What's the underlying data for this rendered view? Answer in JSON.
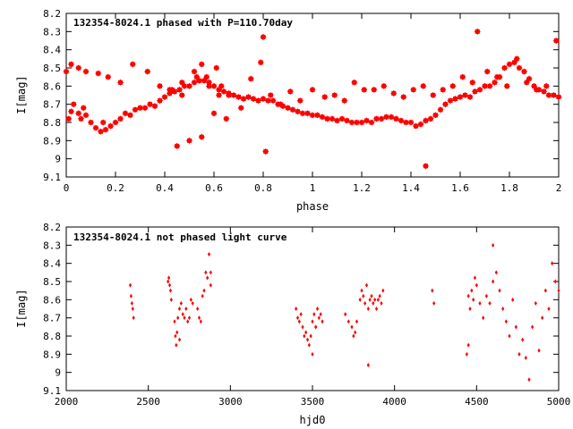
{
  "chart_data": [
    {
      "type": "scatter",
      "title": "132354-8024.1 phased with P=110.70day",
      "xlabel": "phase",
      "ylabel": "I[mag]",
      "xlim": [
        0,
        2
      ],
      "ylim": [
        8.2,
        9.1
      ],
      "y_inverted": true,
      "xticks": [
        0,
        0.2,
        0.4,
        0.6,
        0.8,
        1,
        1.2,
        1.4,
        1.6,
        1.8,
        2
      ],
      "xtick_labels": [
        "0",
        "0.2",
        "0.4",
        "0.6",
        "0.8",
        "1",
        "1.2",
        "1.4",
        "1.6",
        "1.8",
        "2"
      ],
      "yticks": [
        8.2,
        8.3,
        8.4,
        8.5,
        8.6,
        8.7,
        8.8,
        8.9,
        9.0,
        9.1
      ],
      "ytick_labels": [
        "8.2",
        "8.3",
        "8.4",
        "8.5",
        "8.6",
        "8.7",
        "8.8",
        "8.9",
        "9",
        "9.1"
      ],
      "marker_color": "#ff0000",
      "grid": false,
      "series": [
        {
          "x": [
            0.0,
            0.01,
            0.02,
            0.03,
            0.05,
            0.06,
            0.07,
            0.08,
            0.1,
            0.12,
            0.14,
            0.15,
            0.16,
            0.18,
            0.2,
            0.22,
            0.24,
            0.26,
            0.28,
            0.3,
            0.32,
            0.34,
            0.36,
            0.38,
            0.4,
            0.42,
            0.44,
            0.46,
            0.48,
            0.5,
            0.52,
            0.54,
            0.56,
            0.58,
            0.6,
            0.62,
            0.64,
            0.66,
            0.68,
            0.7,
            0.72,
            0.74,
            0.76,
            0.78,
            0.8,
            0.82,
            0.84,
            0.86,
            0.88,
            0.9,
            0.92,
            0.94,
            0.96,
            0.98,
            1.0,
            1.02,
            1.04,
            1.06,
            1.08,
            1.1,
            1.12,
            1.14,
            1.16,
            1.18,
            1.2,
            1.22,
            1.24,
            1.26,
            1.28,
            1.3,
            1.32,
            1.34,
            1.36,
            1.38,
            1.4,
            1.42,
            1.44,
            1.46,
            1.48,
            1.5,
            1.52,
            1.54,
            1.56,
            1.58,
            1.6,
            1.62,
            1.64,
            1.66,
            1.68,
            1.7,
            1.72,
            1.74,
            1.76,
            1.78,
            1.8,
            1.82,
            1.84,
            1.86,
            1.88,
            1.9,
            1.92,
            1.94,
            1.96,
            1.98,
            2.0,
            0.02,
            0.05,
            0.08,
            0.13,
            0.17,
            0.22,
            0.27,
            0.33,
            0.38,
            0.43,
            0.47,
            0.52,
            0.55,
            0.57,
            0.61,
            0.63,
            0.66,
            0.71,
            0.75,
            0.79,
            0.8,
            0.81,
            0.83,
            0.87,
            0.91,
            0.95,
            1.0,
            1.05,
            1.09,
            1.13,
            1.17,
            1.21,
            1.25,
            1.29,
            1.33,
            1.37,
            1.41,
            1.45,
            1.46,
            1.49,
            1.53,
            1.57,
            1.61,
            1.65,
            1.67,
            1.71,
            1.75,
            1.79,
            1.83,
            1.87,
            1.91,
            1.95,
            1.99,
            0.45,
            0.5,
            0.55,
            0.6,
            0.65,
            0.42,
            0.47,
            0.53,
            0.58,
            0.62
          ],
          "y": [
            8.52,
            8.78,
            8.74,
            8.7,
            8.75,
            8.78,
            8.72,
            8.76,
            8.8,
            8.83,
            8.85,
            8.8,
            8.84,
            8.82,
            8.8,
            8.78,
            8.75,
            8.76,
            8.73,
            8.72,
            8.72,
            8.7,
            8.71,
            8.68,
            8.66,
            8.64,
            8.63,
            8.62,
            8.6,
            8.6,
            8.58,
            8.57,
            8.57,
            8.58,
            8.6,
            8.62,
            8.63,
            8.64,
            8.65,
            8.66,
            8.67,
            8.66,
            8.67,
            8.68,
            8.67,
            8.68,
            8.68,
            8.7,
            8.71,
            8.72,
            8.73,
            8.74,
            8.75,
            8.75,
            8.76,
            8.76,
            8.77,
            8.78,
            8.78,
            8.79,
            8.78,
            8.79,
            8.8,
            8.8,
            8.8,
            8.79,
            8.8,
            8.78,
            8.78,
            8.77,
            8.77,
            8.78,
            8.79,
            8.8,
            8.8,
            8.82,
            8.81,
            8.79,
            8.78,
            8.76,
            8.73,
            8.7,
            8.68,
            8.67,
            8.66,
            8.65,
            8.66,
            8.63,
            8.62,
            8.6,
            8.6,
            8.58,
            8.55,
            8.5,
            8.48,
            8.47,
            8.5,
            8.52,
            8.56,
            8.6,
            8.62,
            8.63,
            8.65,
            8.65,
            8.66,
            8.48,
            8.5,
            8.52,
            8.53,
            8.55,
            8.58,
            8.48,
            8.52,
            8.6,
            8.62,
            8.65,
            8.52,
            8.48,
            8.55,
            8.5,
            8.6,
            8.65,
            8.72,
            8.56,
            8.47,
            8.33,
            8.96,
            8.65,
            8.7,
            8.63,
            8.68,
            8.62,
            8.66,
            8.65,
            8.68,
            8.58,
            8.62,
            8.62,
            8.6,
            8.64,
            8.66,
            8.62,
            8.6,
            9.04,
            8.65,
            8.62,
            8.6,
            8.55,
            8.58,
            8.3,
            8.52,
            8.55,
            8.6,
            8.45,
            8.58,
            8.62,
            8.6,
            8.35,
            8.93,
            8.9,
            8.88,
            8.75,
            8.78,
            8.62,
            8.58,
            8.55,
            8.6,
            8.65
          ]
        }
      ]
    },
    {
      "type": "scatter",
      "title": "132354-8024.1 not phased light curve",
      "xlabel": "hjd0",
      "ylabel": "I[mag]",
      "xlim": [
        2000,
        5000
      ],
      "ylim": [
        8.2,
        9.1
      ],
      "y_inverted": true,
      "xticks": [
        2000,
        2500,
        3000,
        3500,
        4000,
        4500,
        5000
      ],
      "xtick_labels": [
        "2000",
        "2500",
        "3000",
        "3500",
        "4000",
        "4500",
        "5000"
      ],
      "yticks": [
        8.2,
        8.3,
        8.4,
        8.5,
        8.6,
        8.7,
        8.8,
        8.9,
        9.0,
        9.1
      ],
      "ytick_labels": [
        "8.2",
        "8.3",
        "8.4",
        "8.5",
        "8.6",
        "8.7",
        "8.8",
        "8.9",
        "9",
        "9.1"
      ],
      "marker_color": "#ff0000",
      "grid": false,
      "series": [
        {
          "x": [
            2390,
            2395,
            2400,
            2405,
            2410,
            2620,
            2625,
            2630,
            2635,
            2640,
            2660,
            2665,
            2670,
            2675,
            2680,
            2690,
            2700,
            2710,
            2720,
            2730,
            2740,
            2750,
            2760,
            2770,
            2800,
            2810,
            2820,
            2830,
            2840,
            2850,
            2860,
            2870,
            2880,
            3400,
            3410,
            3420,
            3430,
            3440,
            3450,
            3460,
            3470,
            3480,
            3490,
            3500,
            3510,
            3520,
            3530,
            3540,
            3550,
            3560,
            3700,
            3720,
            3740,
            3750,
            3760,
            3770,
            3790,
            3800,
            3810,
            3820,
            3830,
            3840,
            3850,
            3860,
            3870,
            3880,
            3890,
            3900,
            3910,
            3920,
            3930,
            4230,
            4240,
            4440,
            4450,
            4460,
            4470,
            4480,
            4490,
            4500,
            4520,
            4540,
            4560,
            4580,
            4600,
            4620,
            4640,
            4660,
            4680,
            4700,
            4720,
            4740,
            4760,
            4780,
            4800,
            4820,
            4840,
            4860,
            4880,
            4900,
            4920,
            4940,
            4960,
            4980,
            5000,
            3840,
            4600,
            4450,
            2880,
            2690,
            3500,
            3520
          ],
          "y": [
            8.52,
            8.58,
            8.62,
            8.65,
            8.7,
            8.5,
            8.48,
            8.52,
            8.55,
            8.6,
            8.72,
            8.8,
            8.85,
            8.78,
            8.7,
            8.65,
            8.62,
            8.68,
            8.7,
            8.65,
            8.72,
            8.7,
            8.6,
            8.62,
            8.65,
            8.7,
            8.72,
            8.58,
            8.55,
            8.45,
            8.48,
            8.35,
            8.52,
            8.65,
            8.7,
            8.72,
            8.68,
            8.75,
            8.8,
            8.78,
            8.82,
            8.85,
            8.8,
            8.72,
            8.68,
            8.75,
            8.65,
            8.7,
            8.68,
            8.72,
            8.68,
            8.72,
            8.75,
            8.8,
            8.78,
            8.72,
            8.6,
            8.55,
            8.58,
            8.62,
            8.52,
            8.65,
            8.6,
            8.58,
            8.62,
            8.6,
            8.65,
            8.6,
            8.58,
            8.62,
            8.55,
            8.55,
            8.62,
            8.9,
            8.85,
            8.65,
            8.55,
            8.6,
            8.48,
            8.52,
            8.62,
            8.7,
            8.58,
            8.62,
            8.5,
            8.45,
            8.55,
            8.65,
            8.72,
            8.8,
            8.6,
            8.75,
            8.9,
            8.82,
            8.92,
            9.04,
            8.75,
            8.62,
            8.88,
            8.7,
            8.55,
            8.65,
            8.4,
            8.5,
            8.55,
            8.96,
            8.3,
            8.58,
            8.45,
            8.82,
            8.9,
            8.75
          ]
        }
      ]
    }
  ]
}
